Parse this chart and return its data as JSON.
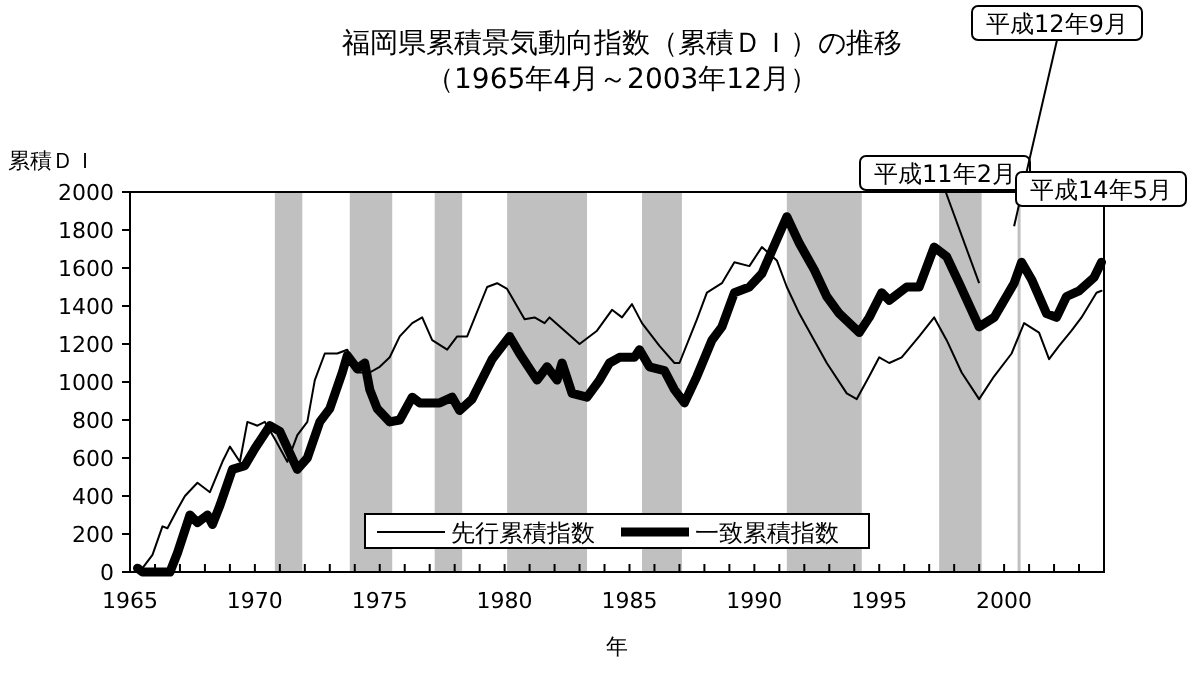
{
  "chart_data": {
    "type": "line",
    "title": "福岡県累積景気動向指数（累積ＤＩ）の推移",
    "subtitle": "（1965年4月～2003年12月）",
    "xlabel": "年",
    "ylabel": "累積ＤＩ",
    "xlim": [
      1965,
      2004
    ],
    "ylim": [
      0,
      2000
    ],
    "xticks": [
      1965,
      {
        "value": 1966,
        "label": null
      },
      {
        "value": 1967,
        "label": null
      },
      {
        "value": 1968,
        "label": null
      },
      {
        "value": 1969,
        "label": null
      },
      1970,
      {
        "value": 1971,
        "label": null
      },
      {
        "value": 1972,
        "label": null
      },
      {
        "value": 1973,
        "label": null
      },
      {
        "value": 1974,
        "label": null
      },
      1975,
      {
        "value": 1976,
        "label": null
      },
      {
        "value": 1977,
        "label": null
      },
      {
        "value": 1978,
        "label": null
      },
      {
        "value": 1979,
        "label": null
      },
      1980,
      {
        "value": 1981,
        "label": null
      },
      {
        "value": 1982,
        "label": null
      },
      {
        "value": 1983,
        "label": null
      },
      {
        "value": 1984,
        "label": null
      },
      1985,
      {
        "value": 1986,
        "label": null
      },
      {
        "value": 1987,
        "label": null
      },
      {
        "value": 1988,
        "label": null
      },
      {
        "value": 1989,
        "label": null
      },
      1990,
      {
        "value": 1991,
        "label": null
      },
      {
        "value": 1992,
        "label": null
      },
      {
        "value": 1993,
        "label": null
      },
      {
        "value": 1994,
        "label": null
      },
      1995,
      {
        "value": 1996,
        "label": null
      },
      {
        "value": 1997,
        "label": null
      },
      {
        "value": 1998,
        "label": null
      },
      {
        "value": 1999,
        "label": null
      },
      2000,
      {
        "value": 2001,
        "label": null
      },
      {
        "value": 2002,
        "label": null
      },
      {
        "value": 2003,
        "label": null
      }
    ],
    "yticks": [
      0,
      200,
      400,
      600,
      800,
      1000,
      1200,
      1400,
      1600,
      1800,
      2000
    ],
    "grid": false,
    "legend": "bottom",
    "marker": "none",
    "line_style": "solid",
    "bands": [
      {
        "axis": "x",
        "from": 1970.8,
        "to": 1971.9,
        "color": "#c0c0c0"
      },
      {
        "axis": "x",
        "from": 1973.8,
        "to": 1975.5,
        "color": "#c0c0c0"
      },
      {
        "axis": "x",
        "from": 1977.2,
        "to": 1978.3,
        "color": "#c0c0c0"
      },
      {
        "axis": "x",
        "from": 1980.1,
        "to": 1983.3,
        "color": "#c0c0c0"
      },
      {
        "axis": "x",
        "from": 1985.5,
        "to": 1987.1,
        "color": "#c0c0c0"
      },
      {
        "axis": "x",
        "from": 1991.3,
        "to": 1994.3,
        "color": "#c0c0c0"
      },
      {
        "axis": "x",
        "from": 1997.4,
        "to": 1999.1,
        "color": "#c0c0c0"
      }
    ],
    "ref_lines": [
      {
        "axis": "x",
        "value": 2000.6,
        "color": "#c0c0c0"
      }
    ],
    "annotations": [
      {
        "text": "平成11年2月",
        "x": 1999.0,
        "y": 1520
      },
      {
        "text": "平成12年9月",
        "x": 2000.4,
        "y": 1820
      },
      "平成14年5月"
    ],
    "series": [
      {
        "name": "先行累積指数",
        "color": "#000000",
        "x": [
          1965.5,
          1965.9,
          1966.3,
          1966.5,
          1966.9,
          1967.2,
          1967.7,
          1968.2,
          1968.7,
          1969.0,
          1969.4,
          1969.7,
          1970.1,
          1970.4,
          1970.8,
          1971.3,
          1971.7,
          1972.1,
          1972.4,
          1972.8,
          1973.3,
          1973.7,
          1974.1,
          1974.6,
          1975.0,
          1975.4,
          1975.8,
          1976.3,
          1976.7,
          1977.1,
          1977.7,
          1978.1,
          1978.5,
          1979.3,
          1979.7,
          1980.1,
          1980.8,
          1981.2,
          1981.6,
          1981.8,
          1982.4,
          1983.0,
          1983.7,
          1984.3,
          1984.7,
          1985.1,
          1985.5,
          1986.2,
          1986.8,
          1987.0,
          1987.7,
          1988.1,
          1988.7,
          1989.2,
          1989.8,
          1990.3,
          1990.9,
          1991.3,
          1991.8,
          1992.1,
          1992.9,
          1993.7,
          1994.1,
          1994.6,
          1995.0,
          1995.4,
          1995.9,
          1996.6,
          1997.2,
          1997.7,
          1998.3,
          1999.0,
          1999.6,
          2000.3,
          2000.8,
          2001.4,
          2001.8,
          2002.2,
          2002.7,
          2003.1,
          2003.7,
          2003.9
        ],
        "values": [
          20,
          90,
          240,
          230,
          330,
          400,
          470,
          420,
          580,
          660,
          580,
          790,
          770,
          790,
          700,
          580,
          720,
          790,
          1010,
          1150,
          1150,
          1170,
          1050,
          1050,
          1080,
          1130,
          1240,
          1310,
          1340,
          1220,
          1170,
          1240,
          1240,
          1500,
          1520,
          1490,
          1330,
          1340,
          1310,
          1340,
          1270,
          1200,
          1270,
          1380,
          1340,
          1410,
          1310,
          1190,
          1100,
          1100,
          1330,
          1470,
          1520,
          1630,
          1610,
          1710,
          1640,
          1500,
          1360,
          1290,
          1100,
          940,
          910,
          1030,
          1130,
          1100,
          1130,
          1240,
          1340,
          1220,
          1050,
          910,
          1030,
          1150,
          1310,
          1260,
          1120,
          1190,
          1270,
          1340,
          1470,
          1480
        ]
      },
      {
        "name": "一致累積指数",
        "color": "#000000",
        "x": [
          1965.3,
          1965.5,
          1966.6,
          1966.9,
          1967.4,
          1967.7,
          1968.1,
          1968.3,
          1968.6,
          1969.1,
          1969.6,
          1970.0,
          1970.6,
          1971.0,
          1971.7,
          1972.1,
          1972.6,
          1973.0,
          1973.5,
          1973.7,
          1974.1,
          1974.4,
          1974.6,
          1974.9,
          1975.4,
          1975.8,
          1976.3,
          1976.6,
          1977.4,
          1977.9,
          1978.2,
          1978.7,
          1979.5,
          1980.2,
          1980.6,
          1981.3,
          1981.7,
          1982.1,
          1982.3,
          1982.7,
          1983.3,
          1983.8,
          1984.2,
          1984.6,
          1985.2,
          1985.4,
          1985.8,
          1986.4,
          1986.8,
          1987.2,
          1987.7,
          1988.3,
          1988.7,
          1989.2,
          1989.8,
          1990.3,
          1990.9,
          1991.3,
          1991.8,
          1992.4,
          1992.9,
          1993.4,
          1994.2,
          1994.6,
          1995.1,
          1995.4,
          1996.1,
          1996.6,
          1997.2,
          1997.7,
          1998.2,
          1999.0,
          1999.6,
          2000.4,
          2000.7,
          2001.1,
          2001.7,
          2002.1,
          2002.5,
          2003.0,
          2003.6,
          2003.9
        ],
        "values": [
          20,
          0,
          0,
          100,
          300,
          260,
          300,
          250,
          350,
          540,
          560,
          650,
          770,
          740,
          540,
          600,
          790,
          860,
          1050,
          1140,
          1070,
          1100,
          960,
          860,
          790,
          800,
          920,
          890,
          890,
          920,
          850,
          910,
          1120,
          1240,
          1150,
          1010,
          1080,
          1010,
          1100,
          940,
          920,
          1010,
          1100,
          1130,
          1130,
          1170,
          1080,
          1060,
          960,
          890,
          1030,
          1220,
          1290,
          1470,
          1500,
          1570,
          1750,
          1870,
          1730,
          1590,
          1450,
          1360,
          1260,
          1340,
          1470,
          1430,
          1500,
          1500,
          1710,
          1660,
          1520,
          1290,
          1340,
          1520,
          1630,
          1540,
          1360,
          1340,
          1450,
          1480,
          1550,
          1630
        ]
      }
    ]
  }
}
